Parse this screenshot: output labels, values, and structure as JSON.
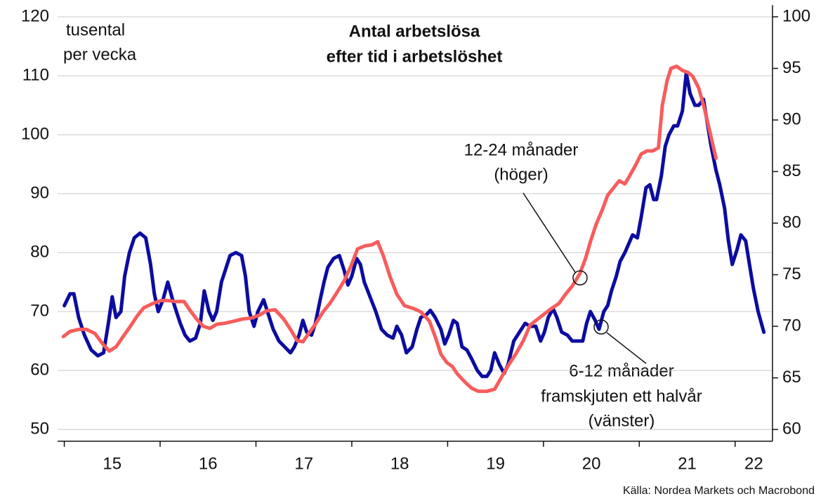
{
  "chart_data": {
    "type": "line",
    "title": [
      "Antal arbetslösa",
      "efter tid i arbetslöshet"
    ],
    "y_axis_label": [
      "tusental",
      "per vecka"
    ],
    "source": "Källa: Nordea Markets och Macrobond",
    "xlim": [
      14.93,
      22.39
    ],
    "xticks": [
      15,
      16,
      17,
      18,
      19,
      20,
      21,
      22
    ],
    "ylim": [
      48,
      122
    ],
    "yticks": [
      50,
      60,
      70,
      80,
      90,
      100,
      110,
      120
    ],
    "y2lim": [
      58.86,
      101.14
    ],
    "y2ticks": [
      60,
      65,
      70,
      75,
      80,
      85,
      90,
      95,
      100
    ],
    "grid": true,
    "annotations": [
      {
        "lines": [
          "12-24 månader",
          "(höger)"
        ]
      },
      {
        "lines": [
          "6-12 månader",
          "framskjuten ett halvår",
          "(vänster)"
        ]
      }
    ],
    "series": [
      {
        "color": "#0c0ca0",
        "axis": "y",
        "x": [
          15.0,
          15.06,
          15.1,
          15.15,
          15.21,
          15.28,
          15.35,
          15.41,
          15.46,
          15.5,
          15.54,
          15.59,
          15.63,
          15.68,
          15.73,
          15.79,
          15.85,
          15.9,
          15.94,
          15.98,
          16.03,
          16.08,
          16.13,
          16.17,
          16.21,
          16.26,
          16.31,
          16.37,
          16.42,
          16.46,
          16.51,
          16.55,
          16.59,
          16.64,
          16.68,
          16.73,
          16.79,
          16.85,
          16.89,
          16.93,
          16.98,
          17.02,
          17.08,
          17.12,
          17.18,
          17.24,
          17.3,
          17.36,
          17.4,
          17.45,
          17.49,
          17.53,
          17.58,
          17.62,
          17.67,
          17.71,
          17.75,
          17.81,
          17.87,
          17.92,
          17.96,
          18.0,
          18.05,
          18.09,
          18.13,
          18.19,
          18.25,
          18.31,
          18.37,
          18.43,
          18.47,
          18.52,
          18.57,
          18.63,
          18.68,
          18.72,
          18.78,
          18.82,
          18.87,
          18.93,
          18.97,
          19.01,
          19.06,
          19.1,
          19.15,
          19.2,
          19.25,
          19.31,
          19.36,
          19.41,
          19.45,
          19.49,
          19.54,
          19.59,
          19.63,
          19.69,
          19.75,
          19.81,
          19.86,
          19.92,
          19.97,
          20.01,
          20.05,
          20.1,
          20.14,
          20.19,
          20.25,
          20.3,
          20.36,
          20.41,
          20.45,
          20.49,
          20.54,
          20.58,
          20.63,
          20.67,
          20.71,
          20.76,
          20.8,
          20.85,
          20.89,
          20.93,
          20.98,
          21.02,
          21.07,
          21.11,
          21.15,
          21.18,
          21.23,
          21.27,
          21.31,
          21.36,
          21.4,
          21.45,
          21.49,
          21.53,
          21.58,
          21.62,
          21.67,
          21.71,
          21.75,
          21.8,
          21.84,
          21.89,
          21.93,
          21.97,
          22.02,
          22.06,
          22.11,
          22.15,
          22.19,
          22.24,
          22.3
        ],
        "values": [
          71,
          73,
          73,
          69,
          66,
          63.5,
          62.5,
          63,
          68,
          72.5,
          69,
          70,
          76,
          80,
          82.5,
          83.3,
          82.5,
          78,
          73,
          70,
          72,
          75,
          72,
          70,
          68,
          66,
          65,
          65.5,
          68,
          73.5,
          70,
          68.5,
          70,
          75,
          77,
          79.5,
          80,
          79.5,
          76,
          70,
          67.5,
          70,
          72,
          70,
          67,
          65,
          64,
          63,
          64,
          66,
          68.5,
          66.5,
          66,
          68,
          72,
          75,
          77.5,
          79,
          79.5,
          77,
          74.5,
          76,
          79,
          78,
          75,
          72.5,
          70,
          67,
          66,
          65.5,
          67.5,
          66,
          63,
          64,
          67,
          69,
          69.5,
          70.2,
          69,
          67,
          64.5,
          66,
          68.5,
          68,
          64,
          63.5,
          62,
          60,
          59,
          59,
          60,
          63,
          61,
          59.5,
          61,
          65,
          66.5,
          68,
          67.5,
          67.5,
          65,
          66.5,
          69,
          70.5,
          69,
          66.5,
          66,
          65,
          65,
          65,
          68,
          70,
          68.5,
          67,
          70,
          71,
          73.5,
          76,
          78.5,
          80,
          81.5,
          83,
          82.5,
          86,
          91,
          91.5,
          89,
          89,
          93,
          98,
          100,
          101.5,
          101.5,
          104,
          110.5,
          107,
          105,
          105,
          106,
          102,
          98,
          94,
          91.5,
          87.5,
          82,
          78,
          80.5,
          83,
          82,
          78,
          74,
          70,
          66.5
        ]
      },
      {
        "color": "#f75c5c",
        "axis": "y2",
        "x": [
          14.99,
          15.06,
          15.15,
          15.23,
          15.32,
          15.4,
          15.47,
          15.54,
          15.62,
          15.69,
          15.76,
          15.83,
          15.92,
          16.01,
          16.08,
          16.16,
          16.25,
          16.3,
          16.38,
          16.45,
          16.52,
          16.59,
          16.68,
          16.77,
          16.86,
          16.95,
          17.04,
          17.11,
          17.2,
          17.29,
          17.36,
          17.43,
          17.49,
          17.55,
          17.62,
          17.7,
          17.77,
          17.84,
          17.92,
          17.99,
          18.06,
          18.14,
          18.21,
          18.27,
          18.33,
          18.4,
          18.47,
          18.55,
          18.65,
          18.72,
          18.81,
          18.87,
          18.93,
          18.99,
          19.05,
          19.1,
          19.18,
          19.25,
          19.32,
          19.41,
          19.49,
          19.57,
          19.64,
          19.71,
          19.79,
          19.86,
          19.94,
          20.01,
          20.08,
          20.16,
          20.23,
          20.3,
          20.38,
          20.44,
          20.49,
          20.55,
          20.61,
          20.67,
          20.73,
          20.79,
          20.85,
          20.9,
          20.96,
          21.02,
          21.08,
          21.14,
          21.2,
          21.24,
          21.29,
          21.33,
          21.39,
          21.45,
          21.51,
          21.56,
          21.62,
          21.68,
          21.74,
          21.8
        ],
        "values": [
          69.0,
          69.5,
          69.7,
          69.7,
          69.3,
          68.3,
          67.6,
          68.0,
          69.1,
          70.0,
          71.0,
          71.8,
          72.2,
          72.5,
          72.5,
          72.4,
          72.4,
          71.7,
          70.7,
          70.0,
          69.8,
          70.2,
          70.3,
          70.5,
          70.7,
          70.8,
          71.1,
          71.5,
          71.6,
          70.7,
          69.7,
          68.6,
          68.5,
          69.3,
          70.2,
          71.4,
          72.2,
          73.2,
          74.4,
          75.8,
          77.5,
          77.8,
          77.9,
          78.2,
          76.8,
          74.8,
          73.1,
          72.0,
          71.7,
          71.4,
          70.5,
          69.0,
          67.3,
          66.5,
          66.1,
          65.4,
          64.6,
          64.0,
          63.7,
          63.7,
          63.9,
          65.2,
          66.3,
          67.3,
          68.6,
          70.1,
          70.7,
          71.2,
          71.7,
          72.2,
          73.1,
          73.9,
          75.1,
          76.6,
          78.2,
          79.9,
          81.2,
          82.7,
          83.4,
          84.1,
          83.8,
          84.6,
          85.6,
          86.7,
          87.0,
          87.0,
          87.3,
          91.4,
          93.8,
          95.0,
          95.2,
          94.8,
          94.6,
          94.2,
          93.1,
          91.1,
          88.7,
          86.3
        ]
      }
    ]
  }
}
